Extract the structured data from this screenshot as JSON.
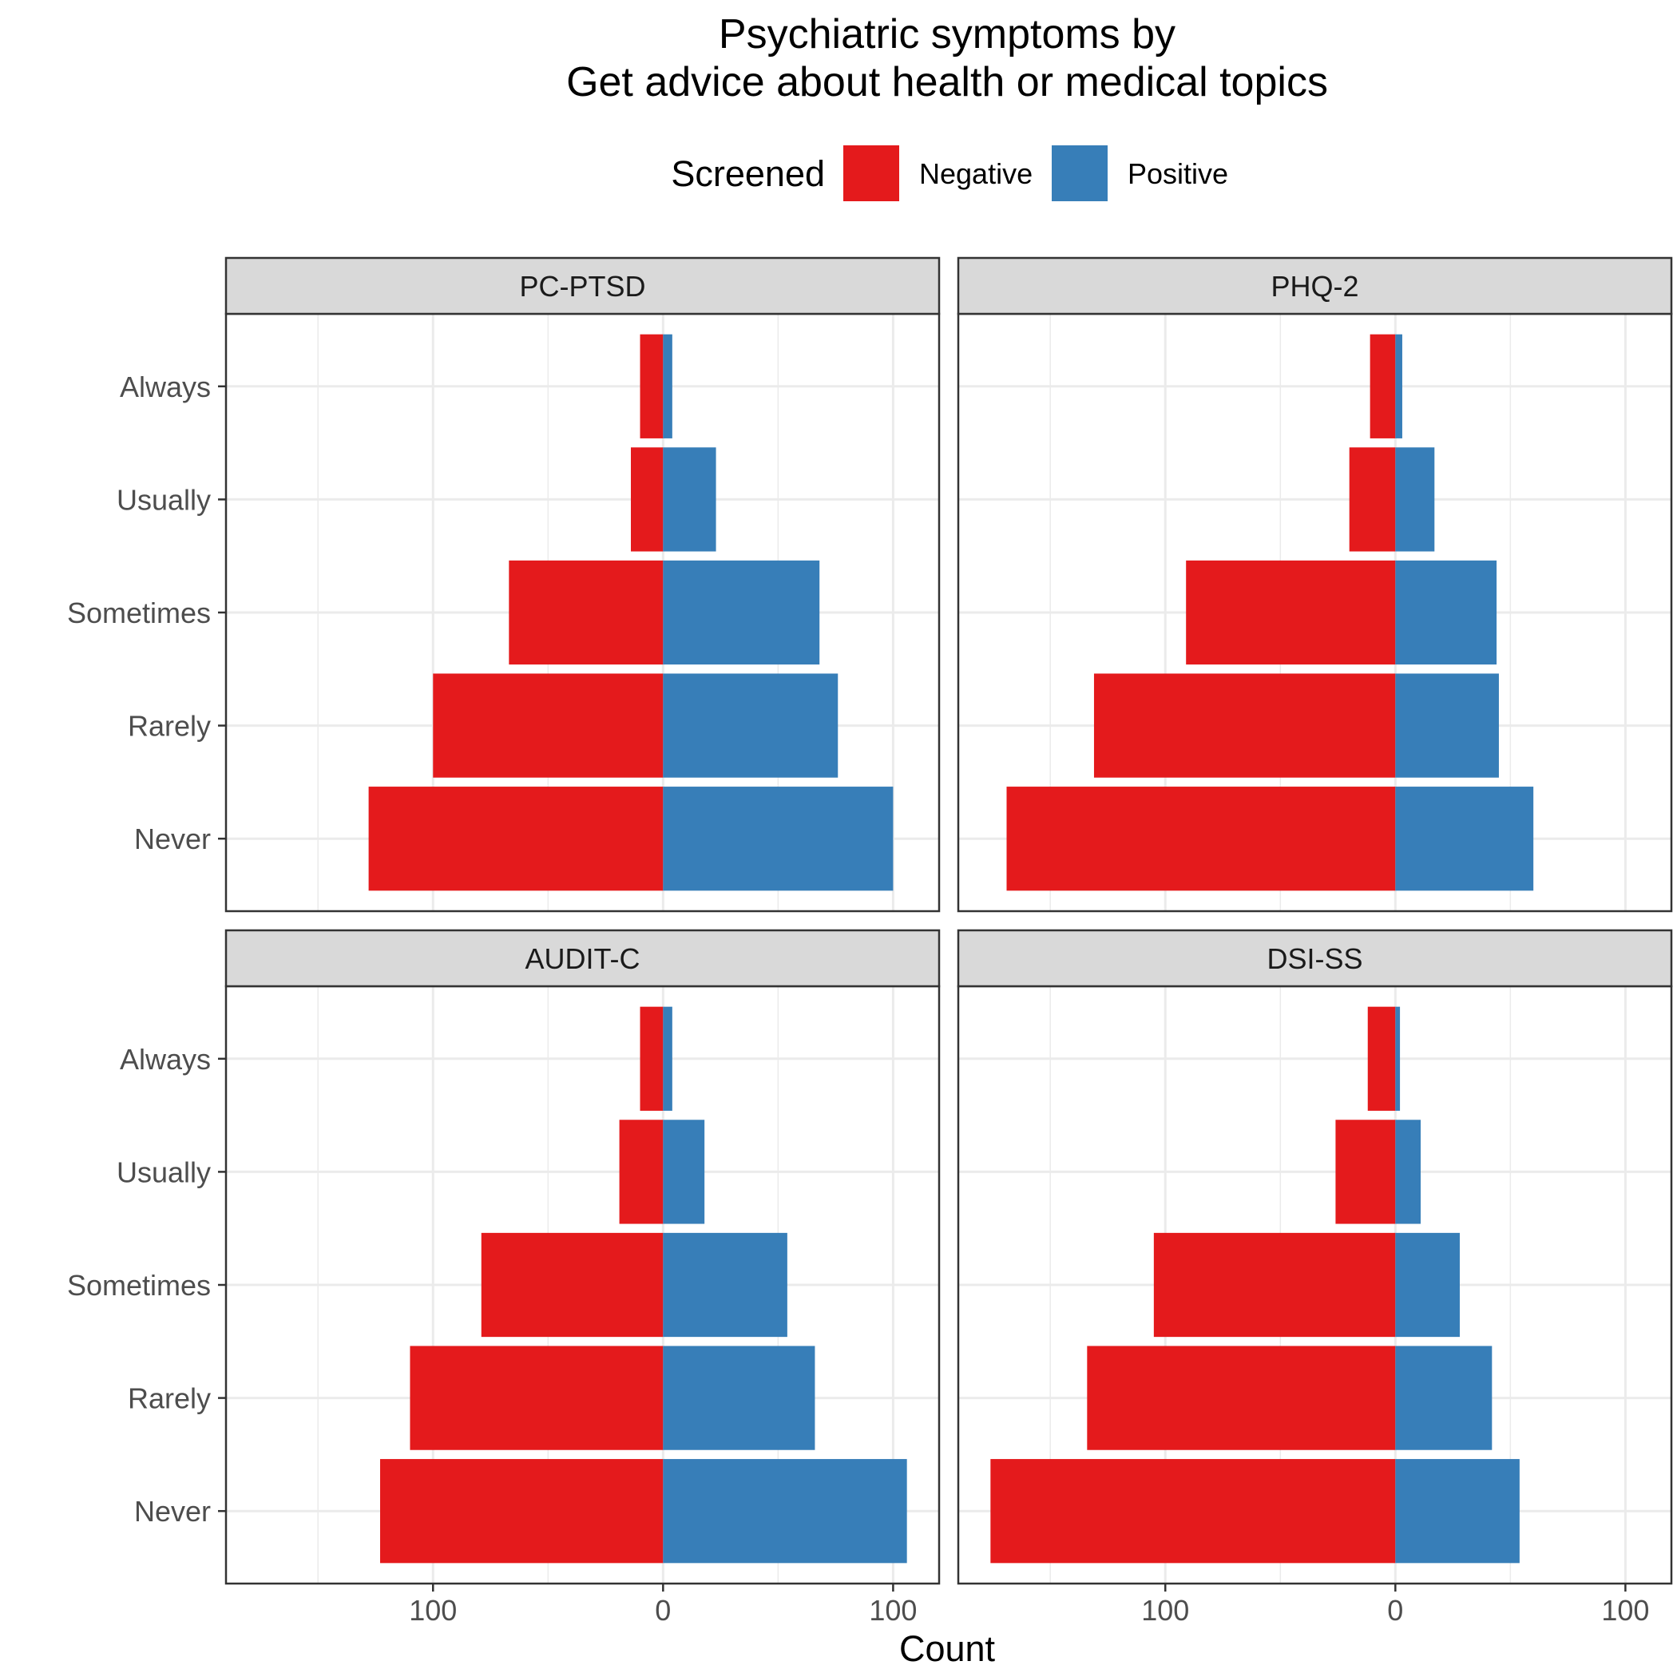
{
  "chart_data": {
    "type": "bar",
    "orientation": "horizontal-diverging",
    "title_lines": [
      "Psychiatric symptoms by",
      "Get advice about health or medical topics"
    ],
    "xlabel": "Count",
    "ylabel": "",
    "legend": {
      "title": "Screened",
      "placement": "top",
      "items": [
        {
          "label": "Negative",
          "color": "#E41A1C"
        },
        {
          "label": "Positive",
          "color": "#377EB8"
        }
      ]
    },
    "categories": [
      "Always",
      "Usually",
      "Sometimes",
      "Rarely",
      "Never"
    ],
    "xlim": [
      -190,
      120
    ],
    "x_ticks": [
      {
        "value": -100,
        "label": "100"
      },
      {
        "value": 0,
        "label": "0"
      },
      {
        "value": 100,
        "label": "100"
      }
    ],
    "grid": true,
    "facets": [
      {
        "label": "PC-PTSD",
        "series": [
          {
            "name": "Negative",
            "values": [
              10,
              14,
              67,
              100,
              128
            ]
          },
          {
            "name": "Positive",
            "values": [
              4,
              23,
              68,
              76,
              100
            ]
          }
        ]
      },
      {
        "label": "PHQ-2",
        "series": [
          {
            "name": "Negative",
            "values": [
              11,
              20,
              91,
              131,
              169
            ]
          },
          {
            "name": "Positive",
            "values": [
              3,
              17,
              44,
              45,
              60
            ]
          }
        ]
      },
      {
        "label": "AUDIT-C",
        "series": [
          {
            "name": "Negative",
            "values": [
              10,
              19,
              79,
              110,
              123
            ]
          },
          {
            "name": "Positive",
            "values": [
              4,
              18,
              54,
              66,
              106
            ]
          }
        ]
      },
      {
        "label": "DSI-SS",
        "series": [
          {
            "name": "Negative",
            "values": [
              12,
              26,
              105,
              134,
              176
            ]
          },
          {
            "name": "Positive",
            "values": [
              2,
              11,
              28,
              42,
              54
            ]
          }
        ]
      }
    ]
  }
}
